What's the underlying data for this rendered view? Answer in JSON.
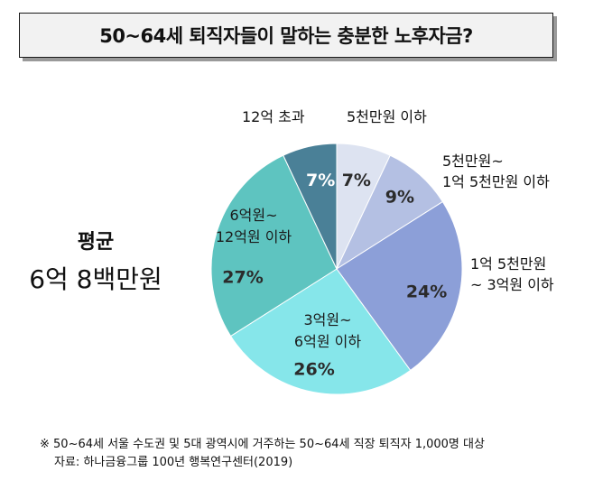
{
  "title": "50~64세 퇴직자들이 말하는 충분한 노후자금?",
  "average": {
    "label": "평균",
    "value": "6억 8백만원"
  },
  "chart_data": {
    "type": "pie",
    "categories": [
      "5천만원 이하",
      "5천만원~ 1억 5천만원 이하",
      "1억 5천만원 ~ 3억원 이하",
      "3억원~ 6억원 이하",
      "6억원~ 12억원 이하",
      "12억 초과"
    ],
    "values": [
      7,
      9,
      24,
      26,
      27,
      7
    ],
    "value_labels": [
      "7%",
      "9%",
      "24%",
      "26%",
      "27%",
      "7%"
    ],
    "colors": [
      "#dde3f1",
      "#b4c0e3",
      "#8c9fd8",
      "#86e6ea",
      "#5ec4c0",
      "#4a8097"
    ],
    "start_angle_deg": 0,
    "direction": "clockwise"
  },
  "labels": {
    "s0": [
      "5천만원 이하"
    ],
    "s1": [
      "5천만원~",
      "1억 5천만원 이하"
    ],
    "s2": [
      "1억 5천만원",
      "~ 3억원 이하"
    ],
    "s3": [
      "3억원~",
      "6억원 이하"
    ],
    "s4": [
      "6억원~",
      "12억원 이하"
    ],
    "s5": [
      "12억 초과"
    ]
  },
  "footnote": {
    "note": "※ 50~64세 서울 수도권 및 5대 광역시에 거주하는 50~64세 직장 퇴직자 1,000명 대상",
    "source": "자료: 하나금융그룹 100년 행복연구센터(2019)"
  }
}
